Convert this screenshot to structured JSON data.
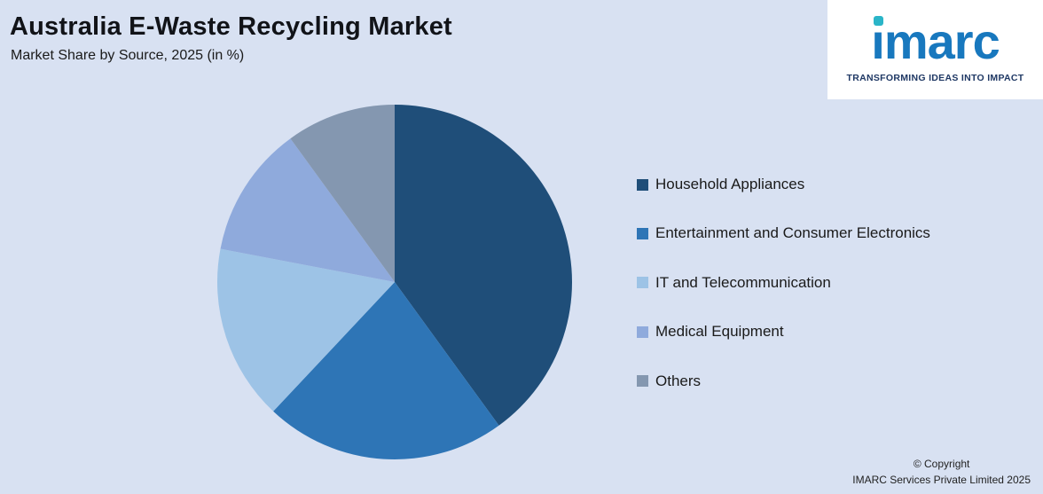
{
  "header": {
    "title": "Australia E-Waste Recycling Market",
    "subtitle": "Market Share by Source, 2025 (in %)"
  },
  "logo": {
    "brand": "imarc",
    "tagline": "TRANSFORMING IDEAS INTO IMPACT",
    "brand_color": "#1878be",
    "dot_color": "#2ab5c8",
    "tagline_color": "#1f3864"
  },
  "chart_data": {
    "type": "pie",
    "title": "Australia E-Waste Recycling Market",
    "subtitle": "Market Share by Source, 2025 (in %)",
    "unit": "%",
    "labels": [
      "Household Appliances",
      "Entertainment and Consumer Electronics",
      "IT and Telecommunication",
      "Medical Equipment",
      "Others"
    ],
    "values": [
      40,
      22,
      16,
      12,
      10
    ],
    "colors": [
      "#1f4e79",
      "#2e75b6",
      "#9dc3e6",
      "#8faadc",
      "#8497b0"
    ],
    "start_angle_deg": -90,
    "direction": "clockwise",
    "legend_position": "right",
    "data_labels": false,
    "background_color": "#d8e1f2"
  },
  "footer": {
    "line1": "© Copyright",
    "line2": "IMARC Services Private Limited 2025"
  }
}
